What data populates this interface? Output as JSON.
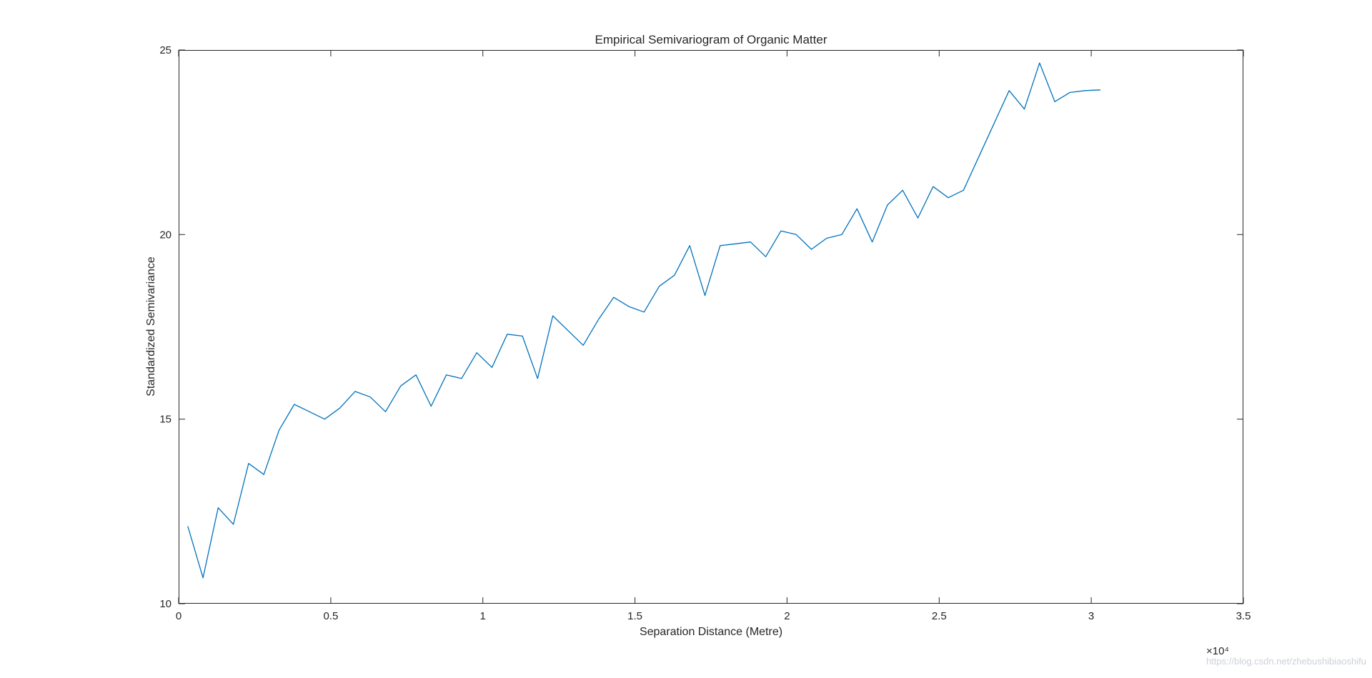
{
  "chart_data": {
    "type": "line",
    "title": "Empirical Semivariogram of Organic Matter",
    "xlabel": "Separation Distance (Metre)",
    "ylabel": "Standardized Semivariance",
    "x_multiplier": "×10⁴",
    "xlim": [
      0,
      35000
    ],
    "ylim": [
      10,
      25
    ],
    "xticks": [
      0,
      5000,
      10000,
      15000,
      20000,
      25000,
      30000,
      35000
    ],
    "xtick_labels": [
      "0",
      "0.5",
      "1",
      "1.5",
      "2",
      "2.5",
      "3",
      "3.5"
    ],
    "yticks": [
      10,
      15,
      20,
      25
    ],
    "ytick_labels": [
      "10",
      "15",
      "20",
      "25"
    ],
    "grid": false,
    "legend": "none",
    "line_color": "#0072BD",
    "x": [
      300,
      800,
      1300,
      1800,
      2300,
      2800,
      3300,
      3800,
      4300,
      4800,
      5300,
      5800,
      6300,
      6800,
      7300,
      7800,
      8300,
      8800,
      9300,
      9800,
      10300,
      10800,
      11300,
      11800,
      12300,
      12800,
      13300,
      13800,
      14300,
      14800,
      15300,
      15800,
      16300,
      16800,
      17300,
      17800,
      18300,
      18800,
      19300,
      19800,
      20300,
      20800,
      21300,
      21800,
      22300,
      22800,
      23300,
      23800,
      24300,
      24800,
      25300,
      25800,
      26300,
      26800,
      27300,
      27800,
      28300,
      28800,
      29300,
      29800,
      30300
    ],
    "y": [
      12.1,
      10.7,
      12.6,
      12.15,
      13.8,
      13.5,
      14.7,
      15.4,
      15.2,
      15.0,
      15.3,
      15.75,
      15.6,
      15.2,
      15.9,
      16.2,
      15.35,
      16.2,
      16.1,
      16.8,
      16.4,
      17.3,
      17.25,
      16.1,
      17.8,
      17.4,
      17.0,
      17.7,
      18.3,
      18.05,
      17.9,
      18.6,
      18.9,
      19.7,
      18.35,
      19.7,
      19.75,
      19.8,
      19.4,
      20.1,
      20.0,
      19.6,
      19.9,
      20.0,
      20.7,
      19.8,
      20.8,
      21.2,
      20.45,
      21.3,
      21.0,
      21.2,
      22.1,
      23.0,
      23.9,
      23.4,
      24.65,
      23.6,
      23.85,
      23.9,
      23.92
    ]
  },
  "watermark": {
    "text": "https://blog.csdn.net/zhebushibiaoshifu"
  }
}
